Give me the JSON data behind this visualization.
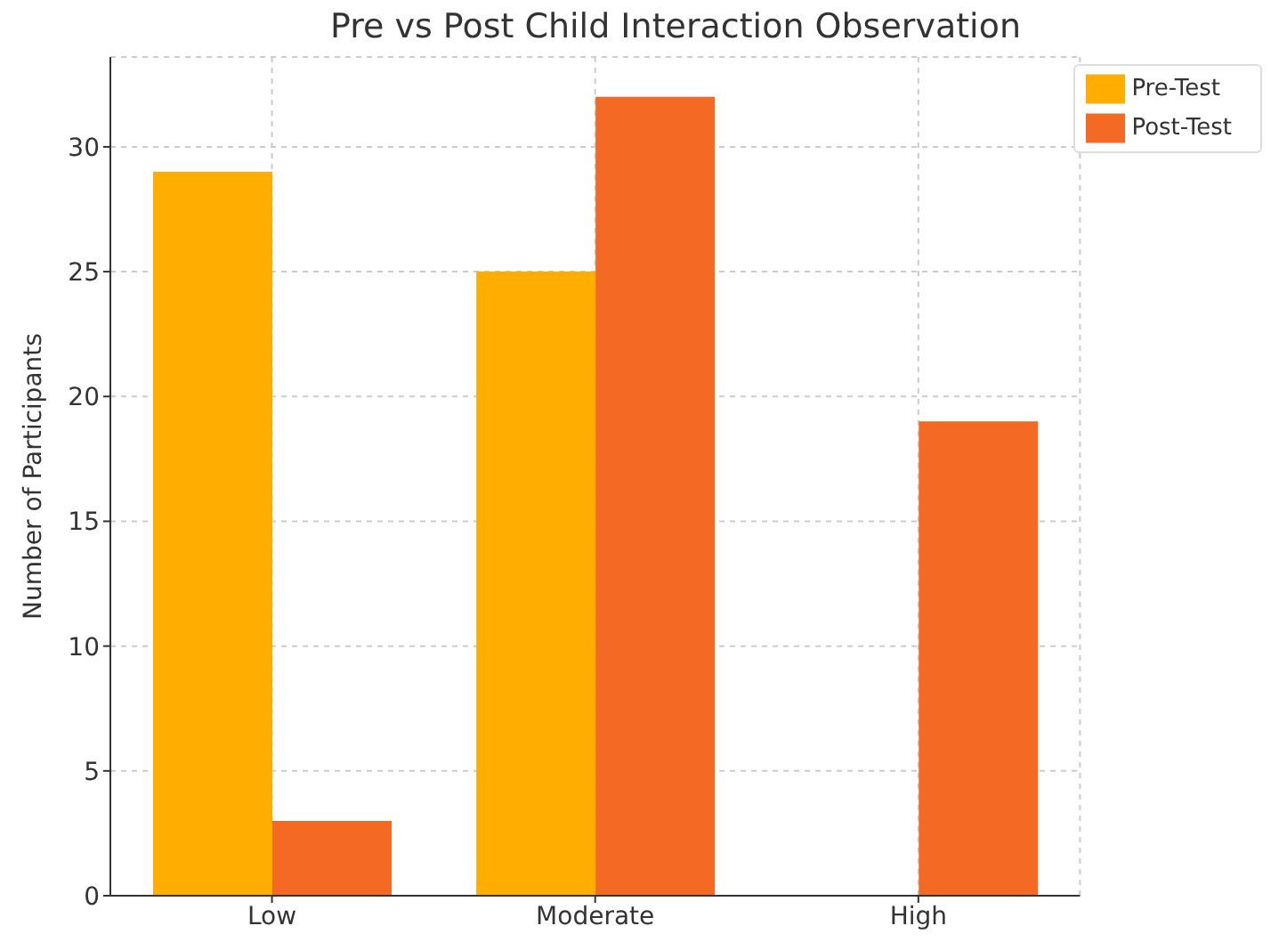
{
  "chart_data": {
    "type": "bar",
    "title": "Pre vs Post Child Interaction Observation",
    "ylabel": "Number of Participants",
    "categories": [
      "Low",
      "Moderate",
      "High"
    ],
    "series": [
      {
        "name": "Pre-Test",
        "color": "#ffae00",
        "values": [
          29,
          25,
          0
        ]
      },
      {
        "name": "Post-Test",
        "color": "#f46a25",
        "values": [
          3,
          32,
          19
        ]
      }
    ],
    "ylim": [
      0,
      33.6
    ],
    "yticks": [
      0,
      5,
      10,
      15,
      20,
      25,
      30
    ],
    "grid": true,
    "legend": "top right"
  }
}
